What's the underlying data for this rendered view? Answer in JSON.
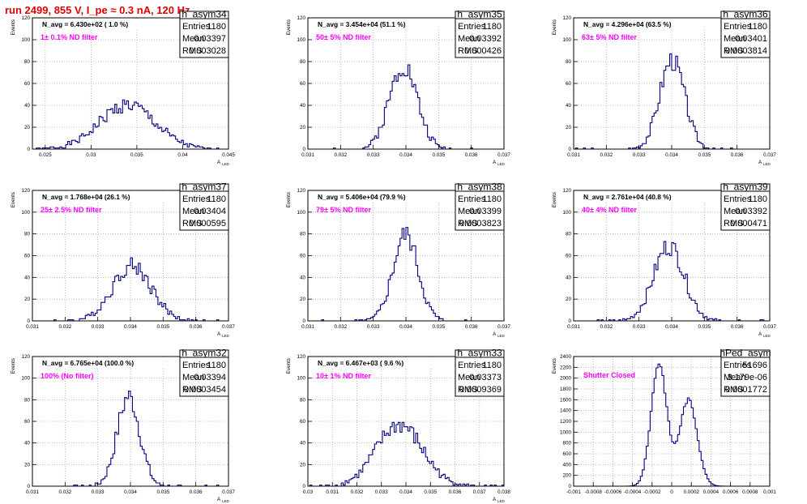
{
  "header": {
    "run_title": "run 2499,   855 V, I_pe ≈ 0.3 nA, 120 Hz"
  },
  "colors": {
    "line": "#000080",
    "filter": "#ff00ff",
    "title": "#e00000",
    "grid": "#aaaaaa"
  },
  "stat_labels": [
    "Entries",
    "Mean",
    "RMS"
  ],
  "chart_data": [
    {
      "type": "histogram",
      "name": "h_asym34",
      "navg": "N_avg = 6.430e+02 ( 1.0 %)",
      "filter": "1± 0.1% ND filter",
      "stats": {
        "entries": "1180",
        "mean": "0.03397",
        "rms": "0.003028"
      },
      "ylabel": "Events",
      "xlabel": "A",
      "xlabel_sub": "LED",
      "xlim": [
        0.0236,
        0.045
      ],
      "ylim": [
        0,
        120
      ],
      "xticks": [
        0.025,
        0.03,
        0.035,
        0.04,
        0.045
      ],
      "xtick_labels": [
        "0.025",
        "0.03",
        "0.035",
        "0.04",
        "0.045"
      ],
      "yticks": [
        0,
        20,
        40,
        60,
        80,
        100,
        120
      ],
      "center": 0.03397,
      "sigma": 0.003028,
      "peak": 40,
      "seed": 1
    },
    {
      "type": "histogram",
      "name": "h_asym35",
      "navg": "N_avg = 3.454e+04 (51.1 %)",
      "filter": "50± 5% ND filter",
      "stats": {
        "entries": "1180",
        "mean": "0.03392",
        "rms": "0.000426"
      },
      "ylabel": "Events",
      "xlabel": "A",
      "xlabel_sub": "LED",
      "xlim": [
        0.031,
        0.037
      ],
      "ylim": [
        0,
        120
      ],
      "xticks": [
        0.031,
        0.032,
        0.033,
        0.034,
        0.035,
        0.036,
        0.037
      ],
      "xtick_labels": [
        "0.031",
        "0.032",
        "0.033",
        "0.034",
        "0.035",
        "0.036",
        "0.037"
      ],
      "yticks": [
        0,
        20,
        40,
        60,
        80,
        100,
        120
      ],
      "center": 0.03392,
      "sigma": 0.000426,
      "peak": 77,
      "seed": 2
    },
    {
      "type": "histogram",
      "name": "h_asym36",
      "navg": "N_avg = 4.296e+04 (63.5 %)",
      "filter": "63± 5% ND filter",
      "stats": {
        "entries": "1180",
        "mean": "0.03401",
        "rms": "0.0003814"
      },
      "ylabel": "Events",
      "xlabel": "A",
      "xlabel_sub": "LED",
      "xlim": [
        0.031,
        0.037
      ],
      "ylim": [
        0,
        120
      ],
      "xticks": [
        0.031,
        0.032,
        0.033,
        0.034,
        0.035,
        0.036,
        0.037
      ],
      "xtick_labels": [
        "0.031",
        "0.032",
        "0.033",
        "0.034",
        "0.035",
        "0.036",
        "0.037"
      ],
      "yticks": [
        0,
        20,
        40,
        60,
        80,
        100,
        120
      ],
      "center": 0.03401,
      "sigma": 0.0003814,
      "peak": 82,
      "seed": 3
    },
    {
      "type": "histogram",
      "name": "h_asym37",
      "navg": "N_avg = 1.768e+04 (26.1 %)",
      "filter": "25± 2.5% ND filter",
      "stats": {
        "entries": "1180",
        "mean": "0.03404",
        "rms": "0.000595"
      },
      "ylabel": "Events",
      "xlabel": "A",
      "xlabel_sub": "LED",
      "xlim": [
        0.031,
        0.037
      ],
      "ylim": [
        0,
        120
      ],
      "xticks": [
        0.031,
        0.032,
        0.033,
        0.034,
        0.035,
        0.036,
        0.037
      ],
      "xtick_labels": [
        "0.031",
        "0.032",
        "0.033",
        "0.034",
        "0.035",
        "0.036",
        "0.037"
      ],
      "yticks": [
        0,
        20,
        40,
        60,
        80,
        100,
        120
      ],
      "center": 0.03404,
      "sigma": 0.000595,
      "peak": 51,
      "seed": 4
    },
    {
      "type": "histogram",
      "name": "h_asym38",
      "navg": "N_avg = 5.406e+04 (79.9 %)",
      "filter": "79± 5% ND filter",
      "stats": {
        "entries": "1180",
        "mean": "0.03399",
        "rms": "0.0003823"
      },
      "ylabel": "Events",
      "xlabel": "A",
      "xlabel_sub": "LED",
      "xlim": [
        0.031,
        0.037
      ],
      "ylim": [
        0,
        120
      ],
      "xticks": [
        0.031,
        0.032,
        0.033,
        0.034,
        0.035,
        0.036,
        0.037
      ],
      "xtick_labels": [
        "0.031",
        "0.032",
        "0.033",
        "0.034",
        "0.035",
        "0.036",
        "0.037"
      ],
      "yticks": [
        0,
        20,
        40,
        60,
        80,
        100,
        120
      ],
      "center": 0.03399,
      "sigma": 0.0003823,
      "peak": 80,
      "seed": 5
    },
    {
      "type": "histogram",
      "name": "h_asym39",
      "navg": "N_avg = 2.761e+04 (40.8 %)",
      "filter": "40± 4% ND filter",
      "stats": {
        "entries": "1180",
        "mean": "0.03392",
        "rms": "0.000471"
      },
      "ylabel": "Events",
      "xlabel": "A",
      "xlabel_sub": "LED",
      "xlim": [
        0.031,
        0.037
      ],
      "ylim": [
        0,
        120
      ],
      "xticks": [
        0.031,
        0.032,
        0.033,
        0.034,
        0.035,
        0.036,
        0.037
      ],
      "xtick_labels": [
        "0.031",
        "0.032",
        "0.033",
        "0.034",
        "0.035",
        "0.036",
        "0.037"
      ],
      "yticks": [
        0,
        20,
        40,
        60,
        80,
        100,
        120
      ],
      "center": 0.03392,
      "sigma": 0.000471,
      "peak": 69,
      "seed": 6
    },
    {
      "type": "histogram",
      "name": "h_asym32",
      "navg": "N_avg = 6.765e+04 (100.0 %)",
      "filter": "100% (No filter)",
      "stats": {
        "entries": "1180",
        "mean": "0.03394",
        "rms": "0.0003454"
      },
      "ylabel": "Events",
      "xlabel": "A",
      "xlabel_sub": "LED",
      "xlim": [
        0.031,
        0.037
      ],
      "ylim": [
        0,
        120
      ],
      "xticks": [
        0.031,
        0.032,
        0.033,
        0.034,
        0.035,
        0.036,
        0.037
      ],
      "xtick_labels": [
        "0.031",
        "0.032",
        "0.033",
        "0.034",
        "0.035",
        "0.036",
        "0.037"
      ],
      "yticks": [
        0,
        20,
        40,
        60,
        80,
        100,
        120
      ],
      "center": 0.03394,
      "sigma": 0.0003454,
      "peak": 83,
      "seed": 7
    },
    {
      "type": "histogram",
      "name": "h_asym33",
      "navg": "N_avg = 6.467e+03 ( 9.6 %)",
      "filter": "10± 1% ND filter",
      "stats": {
        "entries": "1180",
        "mean": "0.03373",
        "rms": "0.0009369"
      },
      "ylabel": "Events",
      "xlabel": "A",
      "xlabel_sub": "LED",
      "xlim": [
        0.03,
        0.038
      ],
      "ylim": [
        0,
        120
      ],
      "xticks": [
        0.03,
        0.031,
        0.032,
        0.033,
        0.034,
        0.035,
        0.036,
        0.037,
        0.038
      ],
      "xtick_labels": [
        "0.03",
        "0.031",
        "0.032",
        "0.033",
        "0.034",
        "0.035",
        "0.036",
        "0.037",
        "0.038"
      ],
      "yticks": [
        0,
        20,
        40,
        60,
        80,
        100,
        120
      ],
      "center": 0.03373,
      "sigma": 0.0009369,
      "peak": 57,
      "seed": 8
    },
    {
      "type": "histogram",
      "name": "hPed_asym",
      "navg": "",
      "filter": "Shutter Closed",
      "stats": {
        "entries": "51696",
        "mean": "3.179e-06",
        "rms": "0.0001772"
      },
      "ylabel": "Events",
      "xlabel": "",
      "xlabel_sub": "",
      "xlim": [
        -0.001,
        0.001
      ],
      "ylim": [
        0,
        2400
      ],
      "xticks": [
        -0.001,
        -0.0008,
        -0.0006,
        -0.0004,
        -0.0002,
        0,
        0.0002,
        0.0004,
        0.0006,
        0.0008,
        0.001
      ],
      "xtick_labels": [
        "-0.001",
        "-0.0008",
        "-0.0006",
        "-0.0004",
        "-0.0002",
        "0",
        "0.0002",
        "0.0004",
        "0.0006",
        "0.0008",
        "0.001"
      ],
      "yticks": [
        0,
        200,
        400,
        600,
        800,
        1000,
        1200,
        1400,
        1600,
        1800,
        2000,
        2200,
        2400
      ],
      "bimodal": [
        {
          "mu": -0.00013,
          "sigma": 8e-05,
          "amp": 2280
        },
        {
          "mu": 0.00017,
          "sigma": 9e-05,
          "amp": 1600
        }
      ],
      "seed": 9
    }
  ]
}
